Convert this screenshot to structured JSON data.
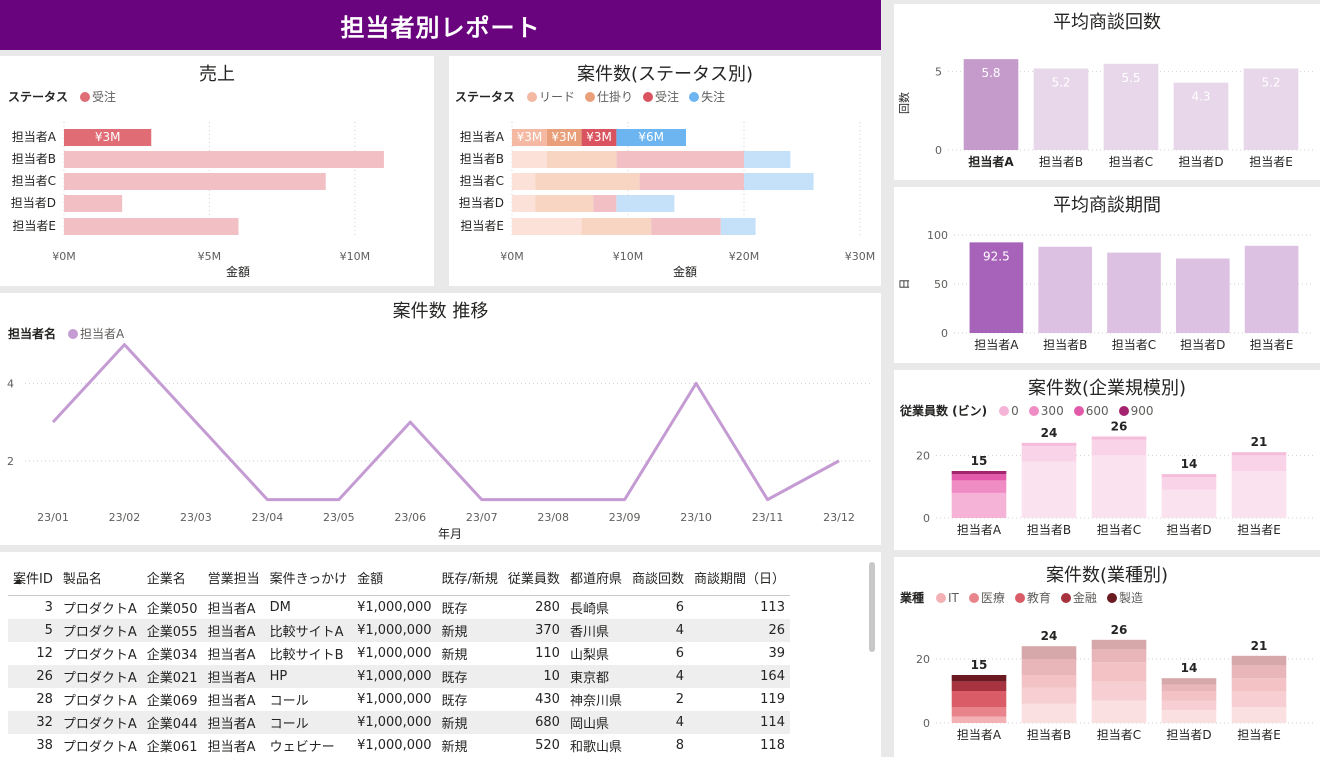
{
  "report_title": "担当者別レポート",
  "reps": [
    "担当者A",
    "担当者B",
    "担当者C",
    "担当者D",
    "担当者E"
  ],
  "sales": {
    "title": "売上",
    "legend_title": "ステータス",
    "legend": [
      {
        "label": "受注",
        "color": "#e06c75"
      }
    ],
    "xlabel": "金額",
    "ticks": [
      "¥0M",
      "¥5M",
      "¥10M"
    ],
    "bar_label": "¥3M"
  },
  "cases_status": {
    "title": "案件数(ステータス別)",
    "legend_title": "ステータス",
    "legend": [
      {
        "label": "リード",
        "color": "#f4b8a3"
      },
      {
        "label": "仕掛り",
        "color": "#e9a07a"
      },
      {
        "label": "受注",
        "color": "#d9545f"
      },
      {
        "label": "失注",
        "color": "#6db5f0"
      }
    ],
    "xlabel": "金額",
    "ticks": [
      "¥0M",
      "¥10M",
      "¥20M",
      "¥30M"
    ],
    "labels_a": [
      "¥3M",
      "¥3M",
      "¥3M",
      "¥6M"
    ]
  },
  "trend": {
    "title": "案件数 推移",
    "legend_title": "担当者名",
    "legend": [
      {
        "label": "担当者A",
        "color": "#c49bd3"
      }
    ],
    "xlabel": "年月",
    "yticks": [
      "2",
      "4"
    ],
    "months": [
      "23/01",
      "23/02",
      "23/03",
      "23/04",
      "23/05",
      "23/06",
      "23/07",
      "23/08",
      "23/09",
      "23/10",
      "23/11",
      "23/12"
    ]
  },
  "avg_meetings": {
    "title": "平均商談回数",
    "ylabel": "回数",
    "yticks": [
      "0",
      "5"
    ],
    "value_labels": [
      "5.8",
      "5.2",
      "5.5",
      "4.3",
      "5.2"
    ]
  },
  "avg_period": {
    "title": "平均商談期間",
    "ylabel": "日",
    "yticks": [
      "0",
      "50",
      "100"
    ],
    "value_label": "92.5"
  },
  "cases_size": {
    "title": "案件数(企業規模別)",
    "legend_title": "従業員数 (ビン)",
    "legend": [
      {
        "label": "0",
        "color": "#f6b3d8"
      },
      {
        "label": "300",
        "color": "#ef8cc4"
      },
      {
        "label": "600",
        "color": "#e25aa9"
      },
      {
        "label": "900",
        "color": "#a3236e"
      }
    ],
    "yticks": [
      "0",
      "20"
    ],
    "totals": [
      "15",
      "24",
      "26",
      "14",
      "21"
    ]
  },
  "cases_industry": {
    "title": "案件数(業種別)",
    "legend_title": "業種",
    "legend": [
      {
        "label": "IT",
        "color": "#f3b1b5"
      },
      {
        "label": "医療",
        "color": "#e8848c"
      },
      {
        "label": "教育",
        "color": "#d95c66"
      },
      {
        "label": "金融",
        "color": "#a83340"
      },
      {
        "label": "製造",
        "color": "#6b1a22"
      }
    ],
    "yticks": [
      "0",
      "20"
    ],
    "totals": [
      "15",
      "24",
      "26",
      "14",
      "21"
    ]
  },
  "chart_data": [
    {
      "type": "bar",
      "title": "売上",
      "categories": [
        "担当者A",
        "担当者B",
        "担当者C",
        "担当者D",
        "担当者E"
      ],
      "series": [
        {
          "name": "受注",
          "values": [
            3,
            11,
            9,
            2,
            6
          ]
        }
      ],
      "xlabel": "金額",
      "xlim": [
        0,
        12
      ]
    },
    {
      "type": "bar",
      "title": "案件数(ステータス別)",
      "categories": [
        "担当者A",
        "担当者B",
        "担当者C",
        "担当者D",
        "担当者E"
      ],
      "series": [
        {
          "name": "リード",
          "values": [
            3,
            3,
            2,
            2,
            6
          ]
        },
        {
          "name": "仕掛り",
          "values": [
            3,
            6,
            9,
            5,
            6
          ]
        },
        {
          "name": "受注",
          "values": [
            3,
            11,
            9,
            2,
            6
          ]
        },
        {
          "name": "失注",
          "values": [
            6,
            4,
            6,
            5,
            3
          ]
        }
      ],
      "xlabel": "金額",
      "xlim": [
        0,
        30
      ]
    },
    {
      "type": "line",
      "title": "案件数 推移",
      "x": [
        "23/01",
        "23/02",
        "23/03",
        "23/04",
        "23/05",
        "23/06",
        "23/07",
        "23/08",
        "23/09",
        "23/10",
        "23/11",
        "23/12"
      ],
      "series": [
        {
          "name": "担当者A",
          "values": [
            3,
            5,
            3,
            1,
            1,
            3,
            1,
            1,
            1,
            4,
            1,
            2
          ]
        }
      ],
      "xlabel": "年月",
      "ylim": [
        0.5,
        5.3
      ]
    },
    {
      "type": "bar",
      "title": "平均商談回数",
      "categories": [
        "担当者A",
        "担当者B",
        "担当者C",
        "担当者D",
        "担当者E"
      ],
      "values": [
        5.8,
        5.2,
        5.5,
        4.3,
        5.2
      ],
      "ylabel": "回数",
      "ylim": [
        0,
        6
      ]
    },
    {
      "type": "bar",
      "title": "平均商談期間",
      "categories": [
        "担当者A",
        "担当者B",
        "担当者C",
        "担当者D",
        "担当者E"
      ],
      "values": [
        92.5,
        88,
        82,
        76,
        89
      ],
      "ylabel": "日",
      "ylim": [
        0,
        100
      ]
    },
    {
      "type": "bar",
      "title": "案件数(企業規模別)",
      "categories": [
        "担当者A",
        "担当者B",
        "担当者C",
        "担当者D",
        "担当者E"
      ],
      "series": [
        {
          "name": "0",
          "values": [
            8,
            18,
            20,
            9,
            15
          ]
        },
        {
          "name": "300",
          "values": [
            4,
            5,
            5,
            4,
            5
          ]
        },
        {
          "name": "600",
          "values": [
            2,
            1,
            1,
            1,
            1
          ]
        },
        {
          "name": "900",
          "values": [
            1,
            0,
            0,
            0,
            0
          ]
        }
      ],
      "ylim": [
        0,
        30
      ]
    },
    {
      "type": "bar",
      "title": "案件数(業種別)",
      "categories": [
        "担当者A",
        "担当者B",
        "担当者C",
        "担当者D",
        "担当者E"
      ],
      "series": [
        {
          "name": "IT",
          "values": [
            2,
            6,
            7,
            4,
            5
          ]
        },
        {
          "name": "医療",
          "values": [
            3,
            5,
            6,
            3,
            5
          ]
        },
        {
          "name": "教育",
          "values": [
            5,
            4,
            6,
            3,
            4
          ]
        },
        {
          "name": "金融",
          "values": [
            3,
            5,
            4,
            2,
            4
          ]
        },
        {
          "name": "製造",
          "values": [
            2,
            4,
            3,
            2,
            3
          ]
        }
      ],
      "ylim": [
        0,
        30
      ]
    }
  ],
  "table": {
    "columns": [
      "案件ID",
      "製品名",
      "企業名",
      "営業担当",
      "案件きっかけ",
      "金額",
      "既存/新規",
      "従業員数",
      "都道府県",
      "商談回数",
      "商談期間（日）"
    ],
    "rows": [
      [
        "3",
        "プロダクトA",
        "企業050",
        "担当者A",
        "DM",
        "¥1,000,000",
        "既存",
        "280",
        "長崎県",
        "6",
        "113"
      ],
      [
        "5",
        "プロダクトA",
        "企業055",
        "担当者A",
        "比較サイトA",
        "¥1,000,000",
        "新規",
        "370",
        "香川県",
        "4",
        "26"
      ],
      [
        "12",
        "プロダクトA",
        "企業034",
        "担当者A",
        "比較サイトB",
        "¥1,000,000",
        "新規",
        "110",
        "山梨県",
        "6",
        "39"
      ],
      [
        "26",
        "プロダクトA",
        "企業021",
        "担当者A",
        "HP",
        "¥1,000,000",
        "既存",
        "10",
        "東京都",
        "4",
        "164"
      ],
      [
        "28",
        "プロダクトA",
        "企業069",
        "担当者A",
        "コール",
        "¥1,000,000",
        "既存",
        "430",
        "神奈川県",
        "2",
        "119"
      ],
      [
        "32",
        "プロダクトA",
        "企業044",
        "担当者A",
        "コール",
        "¥1,000,000",
        "新規",
        "680",
        "岡山県",
        "4",
        "114"
      ],
      [
        "38",
        "プロダクトA",
        "企業061",
        "担当者A",
        "ウェビナー",
        "¥1,000,000",
        "新規",
        "520",
        "和歌山県",
        "8",
        "118"
      ]
    ]
  }
}
